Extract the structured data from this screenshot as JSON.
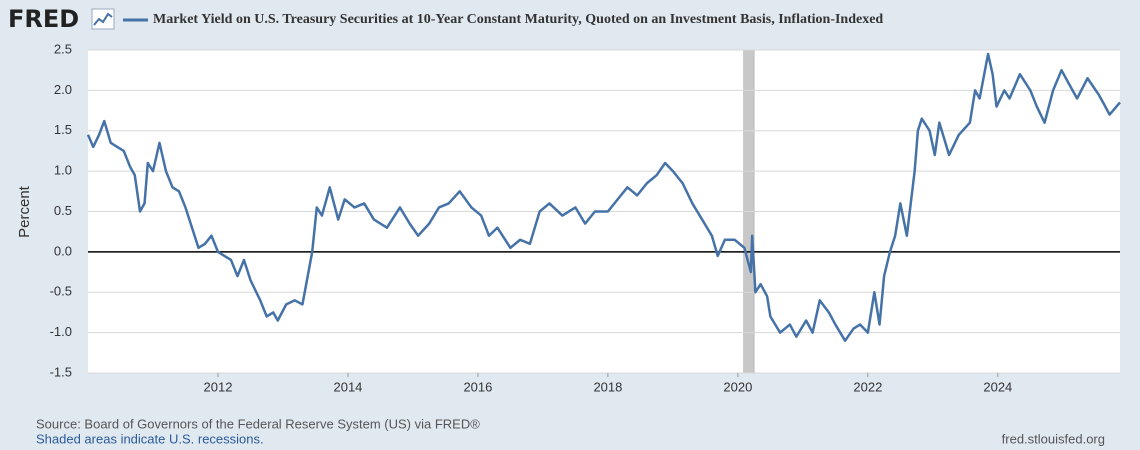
{
  "logo": "FRED",
  "chart_data": {
    "type": "line",
    "ylabel": "Percent",
    "source": "Source: Board of Governors of the Federal Reserve System (US) via FRED®",
    "note": "Shaded areas indicate U.S. recessions.",
    "credit": "fred.stlouisfed.org",
    "x": [
      2010.0,
      2010.08,
      2010.17,
      2010.25,
      2010.35,
      2010.45,
      2010.55,
      2010.65,
      2010.72,
      2010.8,
      2010.87,
      2010.92,
      2011.0,
      2011.1,
      2011.2,
      2011.3,
      2011.4,
      2011.5,
      2011.6,
      2011.7,
      2011.8,
      2011.9,
      2012.0,
      2012.1,
      2012.2,
      2012.3,
      2012.4,
      2012.5,
      2012.65,
      2012.75,
      2012.85,
      2012.92,
      2013.05,
      2013.18,
      2013.3,
      2013.45,
      2013.52,
      2013.6,
      2013.72,
      2013.85,
      2013.95,
      2014.1,
      2014.25,
      2014.4,
      2014.6,
      2014.8,
      2014.95,
      2015.08,
      2015.25,
      2015.4,
      2015.55,
      2015.72,
      2015.9,
      2016.05,
      2016.17,
      2016.3,
      2016.5,
      2016.65,
      2016.8,
      2016.95,
      2017.1,
      2017.3,
      2017.5,
      2017.65,
      2017.8,
      2018.0,
      2018.15,
      2018.3,
      2018.45,
      2018.6,
      2018.75,
      2018.88,
      2019.0,
      2019.15,
      2019.3,
      2019.45,
      2019.6,
      2019.69,
      2019.8,
      2019.95,
      2020.1,
      2020.2,
      2020.22,
      2020.27,
      2020.35,
      2020.45,
      2020.5,
      2020.65,
      2020.8,
      2020.9,
      2021.05,
      2021.15,
      2021.26,
      2021.4,
      2021.5,
      2021.65,
      2021.78,
      2021.88,
      2022.0,
      2022.1,
      2022.18,
      2022.25,
      2022.34,
      2022.42,
      2022.5,
      2022.6,
      2022.72,
      2022.77,
      2022.83,
      2022.95,
      2023.03,
      2023.1,
      2023.25,
      2023.4,
      2023.57,
      2023.65,
      2023.72,
      2023.85,
      2023.92,
      2023.98,
      2024.1,
      2024.18,
      2024.34,
      2024.5,
      2024.6,
      2024.72,
      2024.85,
      2024.98,
      2025.15,
      2025.22,
      2025.38,
      2025.55,
      2025.62,
      2025.72,
      2025.88
    ],
    "series": [
      {
        "name": "Market Yield on U.S. Treasury Securities at 10-Year Constant Maturity, Quoted on an Investment Basis, Inflation-Indexed",
        "color": "#4572a7",
        "values": [
          1.45,
          1.3,
          1.45,
          1.62,
          1.35,
          1.3,
          1.25,
          1.05,
          0.95,
          0.5,
          0.6,
          1.1,
          1.0,
          1.35,
          1.0,
          0.8,
          0.75,
          0.55,
          0.3,
          0.05,
          0.1,
          0.2,
          0.0,
          -0.05,
          -0.1,
          -0.3,
          -0.1,
          -0.35,
          -0.6,
          -0.8,
          -0.75,
          -0.85,
          -0.65,
          -0.6,
          -0.65,
          0.0,
          0.55,
          0.45,
          0.8,
          0.4,
          0.65,
          0.55,
          0.6,
          0.4,
          0.3,
          0.55,
          0.35,
          0.2,
          0.35,
          0.55,
          0.6,
          0.75,
          0.55,
          0.45,
          0.2,
          0.3,
          0.05,
          0.15,
          0.1,
          0.5,
          0.6,
          0.45,
          0.55,
          0.35,
          0.5,
          0.5,
          0.65,
          0.8,
          0.7,
          0.85,
          0.95,
          1.1,
          1.0,
          0.85,
          0.6,
          0.4,
          0.2,
          -0.05,
          0.15,
          0.15,
          0.05,
          -0.25,
          0.2,
          -0.5,
          -0.4,
          -0.55,
          -0.8,
          -1.0,
          -0.9,
          -1.05,
          -0.85,
          -1.0,
          -0.6,
          -0.75,
          -0.9,
          -1.1,
          -0.95,
          -0.9,
          -1.0,
          -0.5,
          -0.9,
          -0.3,
          0.0,
          0.2,
          0.6,
          0.2,
          1.0,
          1.5,
          1.65,
          1.5,
          1.2,
          1.6,
          1.2,
          1.45,
          1.6,
          2.0,
          1.9,
          2.45,
          2.2,
          1.8,
          2.0,
          1.9,
          2.2,
          2.0,
          1.8,
          1.6,
          2.0,
          2.25,
          2.0,
          1.9,
          2.15,
          1.95,
          1.85,
          1.7,
          1.85
        ]
      }
    ],
    "recessions": [
      [
        2020.09,
        2020.25
      ]
    ],
    "recession_color": "#c8c8c8",
    "xlim": [
      2010.0,
      2025.88
    ],
    "xticks": [
      2012,
      2014,
      2016,
      2018,
      2020,
      2022,
      2024
    ],
    "ylim": [
      -1.5,
      2.5
    ],
    "yticks": [
      2.5,
      {
        "value": 2,
        "label": "2.0"
      },
      1.5,
      {
        "value": 1,
        "label": "1.0"
      },
      0.5,
      {
        "value": 0,
        "label": "0.0"
      },
      -0.5,
      {
        "value": -1,
        "label": "-1.0"
      },
      -1.5
    ],
    "grid": true
  }
}
